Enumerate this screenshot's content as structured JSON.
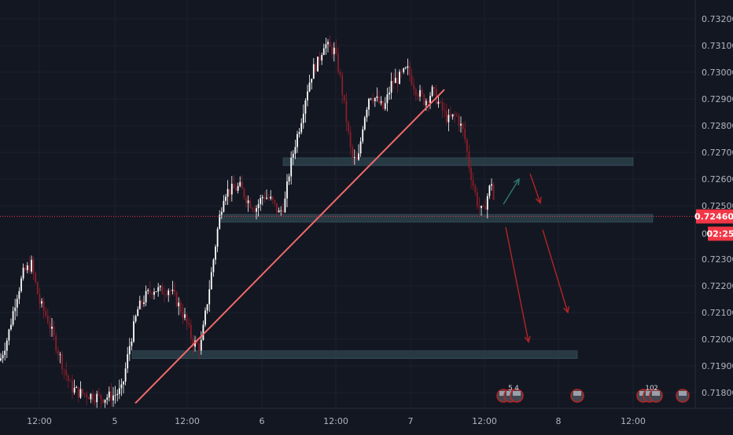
{
  "chart_data": {
    "type": "candlestick",
    "instrument_hint": "forex price chart",
    "y_axis": {
      "ticks": [
        "0.73200",
        "0.73100",
        "0.73000",
        "0.72900",
        "0.72800",
        "0.72700",
        "0.72600",
        "0.72500",
        "0.72300",
        "0.72200",
        "0.72100",
        "0.72000",
        "0.71900",
        "0.71800"
      ],
      "ylim": [
        0.7175,
        0.7323
      ]
    },
    "x_axis": {
      "ticks": [
        "12:00",
        "5",
        "12:00",
        "6",
        "12:00",
        "7",
        "12:00",
        "8",
        "12:00"
      ]
    },
    "current_price": {
      "value": 0.7246,
      "label": "0.72460",
      "countdown": "02:25",
      "partial_label": "0."
    },
    "candles_hint": "approximate close path; wicks and bodies synthesized around it",
    "price_path": [
      [
        0,
        0.7192
      ],
      [
        10,
        0.7201
      ],
      [
        20,
        0.7215
      ],
      [
        30,
        0.7225
      ],
      [
        40,
        0.7228
      ],
      [
        50,
        0.7214
      ],
      [
        60,
        0.7208
      ],
      [
        70,
        0.7199
      ],
      [
        80,
        0.719
      ],
      [
        90,
        0.7182
      ],
      [
        100,
        0.718
      ],
      [
        115,
        0.7179
      ],
      [
        130,
        0.7178
      ],
      [
        145,
        0.7179
      ],
      [
        155,
        0.7181
      ],
      [
        165,
        0.7198
      ],
      [
        175,
        0.7211
      ],
      [
        185,
        0.7216
      ],
      [
        195,
        0.7219
      ],
      [
        205,
        0.7218
      ],
      [
        215,
        0.7219
      ],
      [
        225,
        0.7214
      ],
      [
        235,
        0.7208
      ],
      [
        245,
        0.7199
      ],
      [
        255,
        0.7197
      ],
      [
        262,
        0.7211
      ],
      [
        270,
        0.7227
      ],
      [
        278,
        0.7244
      ],
      [
        285,
        0.7255
      ],
      [
        295,
        0.7256
      ],
      [
        305,
        0.7257
      ],
      [
        315,
        0.7252
      ],
      [
        325,
        0.7249
      ],
      [
        335,
        0.7254
      ],
      [
        345,
        0.7252
      ],
      [
        355,
        0.7247
      ],
      [
        362,
        0.7251
      ],
      [
        368,
        0.7263
      ],
      [
        375,
        0.7273
      ],
      [
        382,
        0.7281
      ],
      [
        390,
        0.7293
      ],
      [
        398,
        0.7301
      ],
      [
        405,
        0.7304
      ],
      [
        412,
        0.7311
      ],
      [
        418,
        0.7309
      ],
      [
        425,
        0.7308
      ],
      [
        432,
        0.7299
      ],
      [
        440,
        0.7283
      ],
      [
        447,
        0.7268
      ],
      [
        455,
        0.7266
      ],
      [
        462,
        0.7282
      ],
      [
        470,
        0.7292
      ],
      [
        478,
        0.729
      ],
      [
        488,
        0.7286
      ],
      [
        498,
        0.7296
      ],
      [
        508,
        0.7298
      ],
      [
        518,
        0.7301
      ],
      [
        528,
        0.7294
      ],
      [
        540,
        0.7289
      ],
      [
        550,
        0.7293
      ],
      [
        560,
        0.7287
      ],
      [
        570,
        0.7282
      ],
      [
        580,
        0.7284
      ],
      [
        590,
        0.7277
      ],
      [
        597,
        0.7264
      ],
      [
        603,
        0.7256
      ],
      [
        608,
        0.725
      ],
      [
        614,
        0.7247
      ],
      [
        620,
        0.7254
      ],
      [
        625,
        0.7259
      ],
      [
        630,
        0.7246
      ]
    ],
    "horizontal_zones": [
      {
        "price": 0.72665,
        "x0": 360,
        "x1": 805,
        "color": "#2a3e48"
      },
      {
        "price": 0.72453,
        "x0": 280,
        "x1": 830,
        "color": "#2a3e48"
      },
      {
        "price": 0.71942,
        "x0": 168,
        "x1": 734,
        "color": "#2a3e48"
      }
    ],
    "trendline": {
      "x0": 172,
      "price0": 0.7176,
      "x1": 565,
      "price1": 0.72935,
      "color": "#f16a6a"
    },
    "arrows": [
      {
        "x0": 640,
        "p0": 0.72505,
        "x1": 660,
        "p1": 0.726,
        "color": "#2e7b74"
      },
      {
        "x0": 674,
        "p0": 0.7262,
        "x1": 687,
        "p1": 0.7251,
        "color": "#b42525"
      },
      {
        "x0": 643,
        "p0": 0.7242,
        "x1": 672,
        "p1": 0.7199,
        "color": "#b42525"
      },
      {
        "x0": 690,
        "p0": 0.7241,
        "x1": 722,
        "p1": 0.721,
        "color": "#b42525"
      }
    ],
    "event_markers": [
      {
        "x": 640,
        "label": ""
      },
      {
        "x": 649,
        "label": "5"
      },
      {
        "x": 657,
        "label": "4"
      },
      {
        "x": 734,
        "label": ""
      },
      {
        "x": 818,
        "label": ""
      },
      {
        "x": 826,
        "label": "10"
      },
      {
        "x": 834,
        "label": "2"
      },
      {
        "x": 868,
        "label": ""
      }
    ],
    "colors": {
      "background": "#131722",
      "grid": "#1e222d",
      "up": "#ffffff",
      "down": "#8b1e2a",
      "axis_text": "#b2b5be",
      "price_tag": "#f23645"
    }
  }
}
